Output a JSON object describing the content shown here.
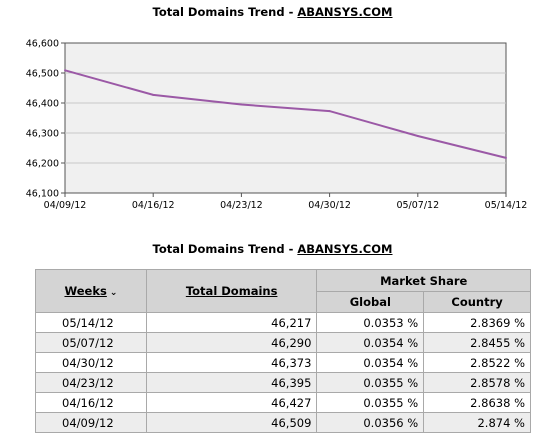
{
  "chart_title": {
    "prefix": "Total Domains Trend - ",
    "site": "ABANSYS.COM"
  },
  "table_title": {
    "prefix": "Total Domains Trend - ",
    "site": "ABANSYS.COM"
  },
  "colors": {
    "line": "#9b59a6",
    "plot_bg": "#f0f0f0",
    "header_bg": "#d4d4d4"
  },
  "chart_data": {
    "type": "line",
    "title": "Total Domains Trend - ABANSYS.COM",
    "x": [
      "04/09/12",
      "04/16/12",
      "04/23/12",
      "04/30/12",
      "05/07/12",
      "05/14/12"
    ],
    "series": [
      {
        "values": [
          46509,
          46427,
          46395,
          46373,
          46290,
          46217
        ]
      }
    ],
    "ylim": [
      46100,
      46600
    ],
    "yticks": [
      46100,
      46200,
      46300,
      46400,
      46500,
      46600
    ],
    "ytick_labels": [
      "46,100",
      "46,200",
      "46,300",
      "46,400",
      "46,500",
      "46,600"
    ],
    "grid": true,
    "xlabel": "",
    "ylabel": ""
  },
  "table": {
    "headers": {
      "weeks": "Weeks",
      "total": "Total Domains",
      "market_share": "Market Share",
      "global": "Global",
      "country": "Country"
    },
    "rows": [
      {
        "week": "05/14/12",
        "total": "46,217",
        "global": "0.0353 %",
        "country": "2.8369 %"
      },
      {
        "week": "05/07/12",
        "total": "46,290",
        "global": "0.0354 %",
        "country": "2.8455 %"
      },
      {
        "week": "04/30/12",
        "total": "46,373",
        "global": "0.0354 %",
        "country": "2.8522 %"
      },
      {
        "week": "04/23/12",
        "total": "46,395",
        "global": "0.0355 %",
        "country": "2.8578 %"
      },
      {
        "week": "04/16/12",
        "total": "46,427",
        "global": "0.0355 %",
        "country": "2.8638 %"
      },
      {
        "week": "04/09/12",
        "total": "46,509",
        "global": "0.0356 %",
        "country": "2.874 %"
      }
    ]
  }
}
